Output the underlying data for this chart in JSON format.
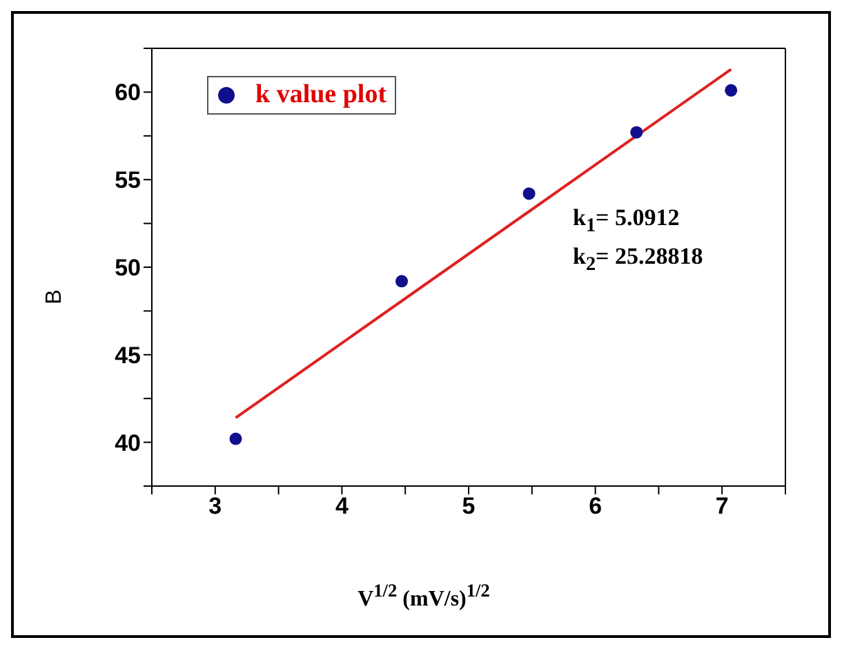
{
  "chart_data": {
    "type": "scatter",
    "xlabel": "V$^{1/2}$ (mV/s)$^{1/2}$",
    "ylabel": "B",
    "annotations": [
      "k$_{1}$= 5.0912",
      "k$_{2}$= 25.28818"
    ],
    "series": [
      {
        "name": "k value plot",
        "marker": "circle",
        "color": "#10108c",
        "x": [
          3.162,
          4.472,
          5.477,
          6.325,
          7.071
        ],
        "values": [
          40.2,
          49.2,
          54.2,
          57.7,
          60.1
        ]
      },
      {
        "type": "line",
        "marker": "none",
        "color": "#e02020",
        "x": [
          3.162,
          7.071
        ],
        "values": [
          41.4,
          61.3
        ]
      }
    ],
    "xlim": [
      2.5,
      7.5
    ],
    "xticks": [
      {
        "value": 2.5,
        "label": null
      },
      3,
      {
        "value": 3.5,
        "label": null
      },
      4,
      {
        "value": 4.5,
        "label": null
      },
      5,
      {
        "value": 5.5,
        "label": null
      },
      6,
      {
        "value": 6.5,
        "label": null
      },
      7,
      {
        "value": 7.5,
        "label": null
      }
    ],
    "ylim": [
      37.5,
      62.5
    ],
    "yticks": [
      {
        "value": 37.5,
        "label": null
      },
      40,
      {
        "value": 42.5,
        "label": null
      },
      45,
      {
        "value": 47.5,
        "label": null
      },
      50,
      {
        "value": 52.5,
        "label": null
      },
      55,
      {
        "value": 57.5,
        "label": null
      },
      60,
      {
        "value": 62.5,
        "label": null
      }
    ],
    "grid": false,
    "legend": "top left",
    "line_style": "solid"
  }
}
